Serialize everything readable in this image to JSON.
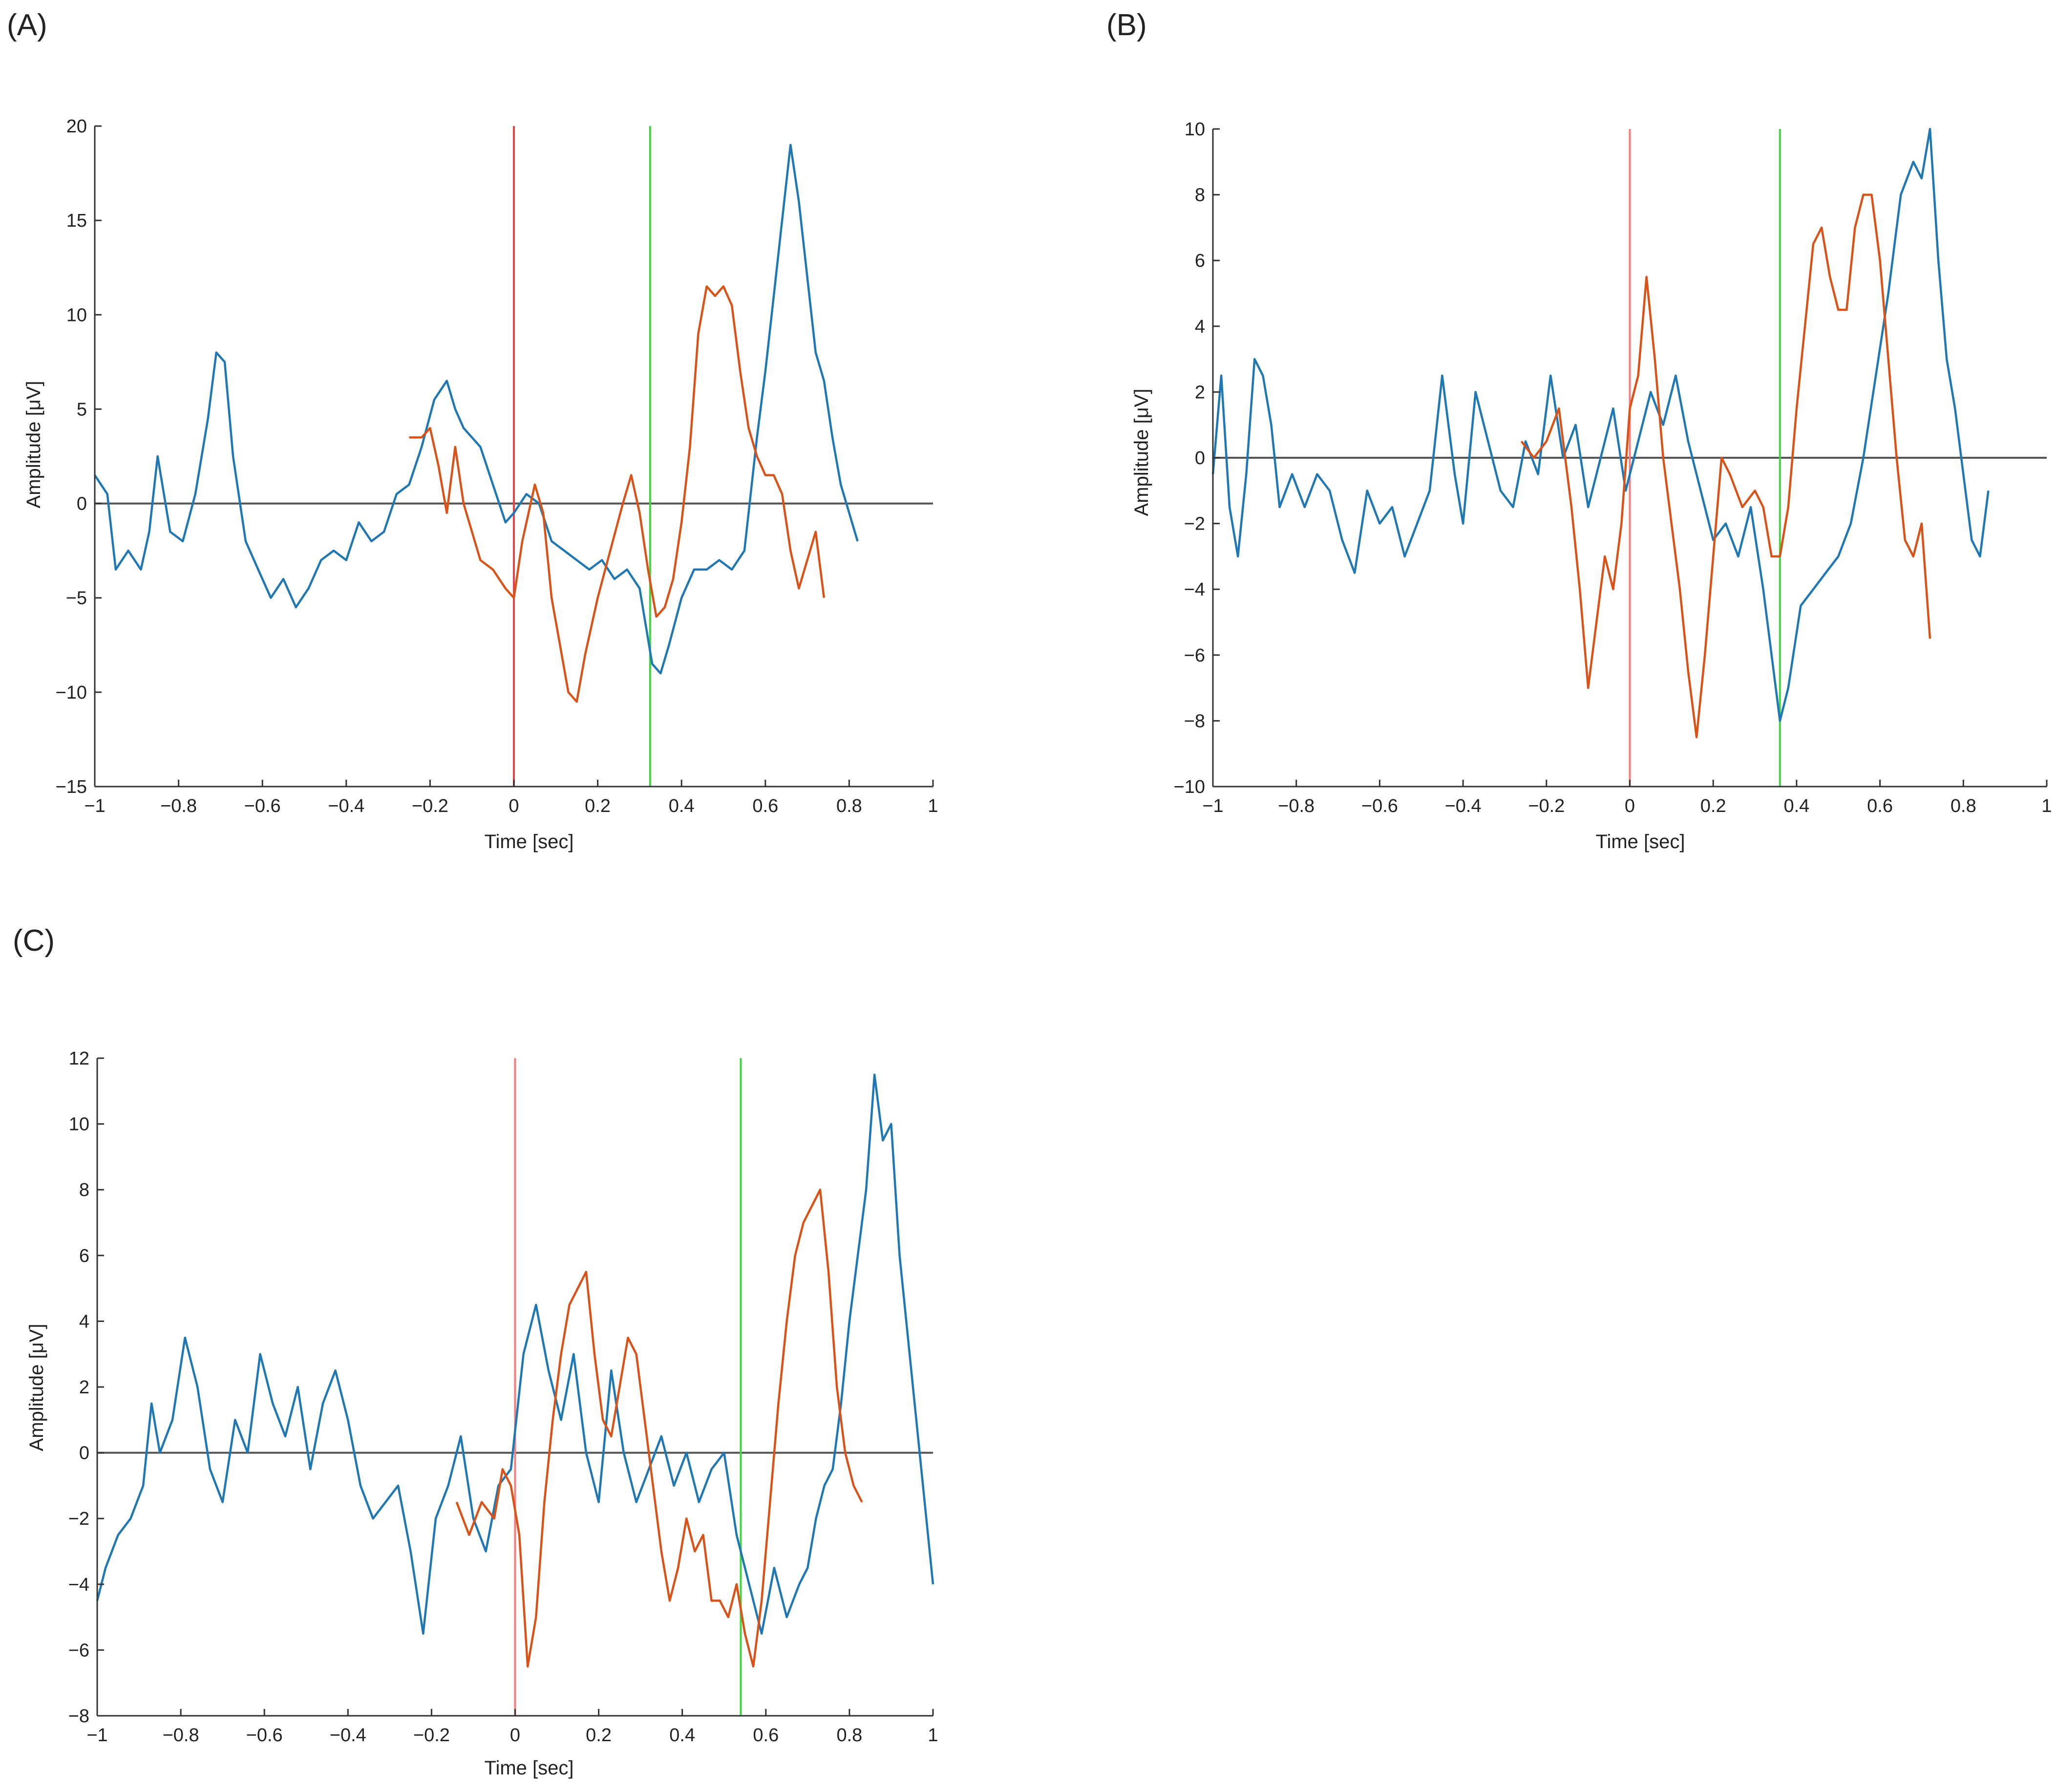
{
  "chart_data": [
    {
      "panel": "(A)",
      "type": "line",
      "xlabel": "Time [sec]",
      "ylabel": "Amplitude [μV]",
      "xlim": [
        -1,
        1
      ],
      "ylim": [
        -15,
        20
      ],
      "xticks": [
        -1,
        -0.8,
        -0.6,
        -0.4,
        -0.2,
        0,
        0.2,
        0.4,
        0.6,
        0.8,
        1
      ],
      "xtick_labels": [
        "−1",
        "−0.8",
        "−0.6",
        "−0.4",
        "−0.2",
        "0",
        "0.2",
        "0.4",
        "0.6",
        "0.8",
        "1"
      ],
      "yticks": [
        -15,
        -10,
        -5,
        0,
        5,
        10,
        15,
        20
      ],
      "ytick_labels": [
        "−15",
        "−10",
        "−5",
        "0",
        "5",
        "10",
        "15",
        "20"
      ],
      "vlines": [
        {
          "x": 0,
          "color": "#e8434b"
        },
        {
          "x": 0.325,
          "color": "#42d442"
        }
      ],
      "zero_line_color": "#555555",
      "series": [
        {
          "name": "blue",
          "color": "#1f77b4",
          "x": [
            -1,
            -0.97,
            -0.95,
            -0.92,
            -0.89,
            -0.87,
            -0.85,
            -0.82,
            -0.79,
            -0.76,
            -0.73,
            -0.71,
            -0.69,
            -0.67,
            -0.64,
            -0.61,
            -0.58,
            -0.55,
            -0.52,
            -0.49,
            -0.46,
            -0.43,
            -0.4,
            -0.37,
            -0.34,
            -0.31,
            -0.28,
            -0.25,
            -0.22,
            -0.19,
            -0.16,
            -0.14,
            -0.12,
            -0.1,
            -0.08,
            -0.05,
            -0.02,
            0,
            0.03,
            0.06,
            0.09,
            0.12,
            0.15,
            0.18,
            0.21,
            0.24,
            0.27,
            0.3,
            0.33,
            0.35,
            0.37,
            0.4,
            0.43,
            0.46,
            0.49,
            0.52,
            0.55,
            0.58,
            0.6,
            0.62,
            0.64,
            0.66,
            0.68,
            0.7,
            0.72,
            0.74,
            0.76,
            0.78,
            0.8,
            0.82
          ],
          "values": [
            1.5,
            0.5,
            -3.5,
            -2.5,
            -3.5,
            -1.5,
            2.5,
            -1.5,
            -2,
            0.5,
            4.5,
            8,
            7.5,
            2.5,
            -2,
            -3.5,
            -5,
            -4,
            -5.5,
            -4.5,
            -3,
            -2.5,
            -3,
            -1,
            -2,
            -1.5,
            0.5,
            1,
            3,
            5.5,
            6.5,
            5,
            4,
            3.5,
            3,
            1,
            -1,
            -0.5,
            0.5,
            0,
            -2,
            -2.5,
            -3,
            -3.5,
            -3,
            -4,
            -3.5,
            -4.5,
            -8.5,
            -9,
            -7.5,
            -5,
            -3.5,
            -3.5,
            -3,
            -3.5,
            -2.5,
            3.5,
            7,
            11,
            15,
            19,
            16,
            12,
            8,
            6.5,
            3.5,
            1,
            -0.5,
            -2
          ]
        },
        {
          "name": "orange",
          "color": "#d95319",
          "x": [
            -0.25,
            -0.22,
            -0.2,
            -0.18,
            -0.16,
            -0.14,
            -0.12,
            -0.1,
            -0.08,
            -0.05,
            -0.02,
            0,
            0.02,
            0.05,
            0.07,
            0.09,
            0.11,
            0.13,
            0.15,
            0.17,
            0.2,
            0.23,
            0.26,
            0.28,
            0.3,
            0.32,
            0.34,
            0.36,
            0.38,
            0.4,
            0.42,
            0.44,
            0.46,
            0.48,
            0.5,
            0.52,
            0.54,
            0.56,
            0.58,
            0.6,
            0.62,
            0.64,
            0.66,
            0.68,
            0.7,
            0.72,
            0.74
          ],
          "values": [
            3.5,
            3.5,
            4,
            2,
            -0.5,
            3,
            0,
            -1.5,
            -3,
            -3.5,
            -4.5,
            -5,
            -2,
            1,
            -0.5,
            -5,
            -7.5,
            -10,
            -10.5,
            -8,
            -5,
            -2.5,
            0,
            1.5,
            -0.5,
            -3.5,
            -6,
            -5.5,
            -4,
            -1,
            3,
            9,
            11.5,
            11,
            11.5,
            10.5,
            7,
            4,
            2.5,
            1.5,
            1.5,
            0.5,
            -2.5,
            -4.5,
            -3,
            -1.5,
            -5
          ]
        }
      ]
    },
    {
      "panel": "(B)",
      "type": "line",
      "xlabel": "Time [sec]",
      "ylabel": "Amplitude [μV]",
      "xlim": [
        -1,
        1
      ],
      "ylim": [
        -10,
        10
      ],
      "xticks": [
        -1,
        -0.8,
        -0.6,
        -0.4,
        -0.2,
        0,
        0.2,
        0.4,
        0.6,
        0.8,
        1
      ],
      "xtick_labels": [
        "−1",
        "−0.8",
        "−0.6",
        "−0.4",
        "−0.2",
        "0",
        "0.2",
        "0.4",
        "0.6",
        "0.8",
        "1"
      ],
      "yticks": [
        -10,
        -8,
        -6,
        -4,
        -2,
        0,
        2,
        4,
        6,
        8,
        10
      ],
      "ytick_labels": [
        "−10",
        "−8",
        "−6",
        "−4",
        "−2",
        "0",
        "2",
        "4",
        "6",
        "8",
        "10"
      ],
      "vlines": [
        {
          "x": 0,
          "color": "#f08080"
        },
        {
          "x": 0.36,
          "color": "#42d442"
        }
      ],
      "zero_line_color": "#555555",
      "series": [
        {
          "name": "blue",
          "color": "#1f77b4",
          "x": [
            -1,
            -0.98,
            -0.96,
            -0.94,
            -0.92,
            -0.9,
            -0.88,
            -0.86,
            -0.84,
            -0.81,
            -0.78,
            -0.75,
            -0.72,
            -0.69,
            -0.66,
            -0.63,
            -0.6,
            -0.57,
            -0.54,
            -0.51,
            -0.48,
            -0.45,
            -0.42,
            -0.4,
            -0.37,
            -0.34,
            -0.31,
            -0.28,
            -0.25,
            -0.22,
            -0.19,
            -0.16,
            -0.13,
            -0.1,
            -0.07,
            -0.04,
            -0.01,
            0.02,
            0.05,
            0.08,
            0.11,
            0.14,
            0.17,
            0.2,
            0.23,
            0.26,
            0.29,
            0.32,
            0.34,
            0.36,
            0.38,
            0.41,
            0.44,
            0.47,
            0.5,
            0.53,
            0.56,
            0.59,
            0.62,
            0.65,
            0.68,
            0.7,
            0.72,
            0.74,
            0.76,
            0.78,
            0.8,
            0.82,
            0.84,
            0.86
          ],
          "values": [
            -0.5,
            2.5,
            -1.5,
            -3,
            -0.5,
            3,
            2.5,
            1,
            -1.5,
            -0.5,
            -1.5,
            -0.5,
            -1,
            -2.5,
            -3.5,
            -1,
            -2,
            -1.5,
            -3,
            -2,
            -1,
            2.5,
            -0.5,
            -2,
            2,
            0.5,
            -1,
            -1.5,
            0.5,
            -0.5,
            2.5,
            0,
            1,
            -1.5,
            0,
            1.5,
            -1,
            0.5,
            2,
            1,
            2.5,
            0.5,
            -1,
            -2.5,
            -2,
            -3,
            -1.5,
            -4,
            -6,
            -8,
            -7,
            -4.5,
            -4,
            -3.5,
            -3,
            -2,
            0,
            2.5,
            5,
            8,
            9,
            8.5,
            10,
            6,
            3,
            1.5,
            -0.5,
            -2.5,
            -3,
            -1
          ]
        },
        {
          "name": "orange",
          "color": "#d95319",
          "x": [
            -0.26,
            -0.23,
            -0.2,
            -0.17,
            -0.14,
            -0.12,
            -0.1,
            -0.08,
            -0.06,
            -0.04,
            -0.02,
            0,
            0.02,
            0.04,
            0.06,
            0.08,
            0.1,
            0.12,
            0.14,
            0.16,
            0.18,
            0.2,
            0.22,
            0.24,
            0.27,
            0.3,
            0.32,
            0.34,
            0.36,
            0.38,
            0.4,
            0.42,
            0.44,
            0.46,
            0.48,
            0.5,
            0.52,
            0.54,
            0.56,
            0.58,
            0.6,
            0.62,
            0.64,
            0.66,
            0.68,
            0.7,
            0.72
          ],
          "values": [
            0.5,
            0,
            0.5,
            1.5,
            -1.5,
            -4,
            -7,
            -5,
            -3,
            -4,
            -2,
            1.5,
            2.5,
            5.5,
            3,
            0,
            -2,
            -4,
            -6.5,
            -8.5,
            -6,
            -3,
            0,
            -0.5,
            -1.5,
            -1,
            -1.5,
            -3,
            -3,
            -1.5,
            1.5,
            4,
            6.5,
            7,
            5.5,
            4.5,
            4.5,
            7,
            8,
            8,
            6,
            3,
            0,
            -2.5,
            -3,
            -2,
            -5.5
          ]
        }
      ]
    },
    {
      "panel": "(C)",
      "type": "line",
      "xlabel": "Time [sec]",
      "ylabel": "Amplitude [μV]",
      "xlim": [
        -1,
        1
      ],
      "ylim": [
        -8,
        12
      ],
      "xticks": [
        -1,
        -0.8,
        -0.6,
        -0.4,
        -0.2,
        0,
        0.2,
        0.4,
        0.6,
        0.8,
        1
      ],
      "xtick_labels": [
        "−1",
        "−0.8",
        "−0.6",
        "−0.4",
        "−0.2",
        "0",
        "0.2",
        "0.4",
        "0.6",
        "0.8",
        "1"
      ],
      "yticks": [
        -8,
        -6,
        -4,
        -2,
        0,
        2,
        4,
        6,
        8,
        10,
        12
      ],
      "ytick_labels": [
        "−8",
        "−6",
        "−4",
        "−2",
        "0",
        "2",
        "4",
        "6",
        "8",
        "10",
        "12"
      ],
      "vlines": [
        {
          "x": 0,
          "color": "#f08080"
        },
        {
          "x": 0.54,
          "color": "#42d442"
        }
      ],
      "zero_line_color": "#555555",
      "series": [
        {
          "name": "blue",
          "color": "#1f77b4",
          "x": [
            -1,
            -0.98,
            -0.95,
            -0.92,
            -0.89,
            -0.87,
            -0.85,
            -0.82,
            -0.79,
            -0.76,
            -0.73,
            -0.7,
            -0.67,
            -0.64,
            -0.61,
            -0.58,
            -0.55,
            -0.52,
            -0.49,
            -0.46,
            -0.43,
            -0.4,
            -0.37,
            -0.34,
            -0.31,
            -0.28,
            -0.25,
            -0.22,
            -0.19,
            -0.16,
            -0.13,
            -0.1,
            -0.07,
            -0.04,
            -0.01,
            0.02,
            0.05,
            0.08,
            0.11,
            0.14,
            0.17,
            0.2,
            0.23,
            0.26,
            0.29,
            0.32,
            0.35,
            0.38,
            0.41,
            0.44,
            0.47,
            0.5,
            0.53,
            0.56,
            0.59,
            0.62,
            0.65,
            0.68,
            0.7,
            0.72,
            0.74,
            0.76,
            0.78,
            0.8,
            0.82,
            0.84,
            0.86,
            0.88,
            0.9,
            0.92,
            0.94,
            0.96,
            0.98,
            1
          ],
          "values": [
            -4.5,
            -3.5,
            -2.5,
            -2,
            -1,
            1.5,
            0,
            1,
            3.5,
            2,
            -0.5,
            -1.5,
            1,
            0,
            3,
            1.5,
            0.5,
            2,
            -0.5,
            1.5,
            2.5,
            1,
            -1,
            -2,
            -1.5,
            -1,
            -3,
            -5.5,
            -2,
            -1,
            0.5,
            -2,
            -3,
            -1,
            -0.5,
            3,
            4.5,
            2.5,
            1,
            3,
            0,
            -1.5,
            2.5,
            0,
            -1.5,
            -0.5,
            0.5,
            -1,
            0,
            -1.5,
            -0.5,
            0,
            -2.5,
            -4,
            -5.5,
            -3.5,
            -5,
            -4,
            -3.5,
            -2,
            -1,
            -0.5,
            1.5,
            4,
            6,
            8,
            11.5,
            9.5,
            10,
            6,
            3.5,
            1,
            -1.5,
            -4
          ]
        },
        {
          "name": "orange",
          "color": "#d95319",
          "x": [
            -0.14,
            -0.11,
            -0.08,
            -0.05,
            -0.03,
            -0.01,
            0.01,
            0.03,
            0.05,
            0.07,
            0.09,
            0.11,
            0.13,
            0.15,
            0.17,
            0.19,
            0.21,
            0.23,
            0.25,
            0.27,
            0.29,
            0.31,
            0.33,
            0.35,
            0.37,
            0.39,
            0.41,
            0.43,
            0.45,
            0.47,
            0.49,
            0.51,
            0.53,
            0.55,
            0.57,
            0.59,
            0.61,
            0.63,
            0.65,
            0.67,
            0.69,
            0.71,
            0.73,
            0.75,
            0.77,
            0.79,
            0.81,
            0.83
          ],
          "values": [
            -1.5,
            -2.5,
            -1.5,
            -2,
            -0.5,
            -1,
            -2.5,
            -6.5,
            -5,
            -1.5,
            1,
            3,
            4.5,
            5,
            5.5,
            3,
            1,
            0.5,
            2,
            3.5,
            3,
            1,
            -1,
            -3,
            -4.5,
            -3.5,
            -2,
            -3,
            -2.5,
            -4.5,
            -4.5,
            -5,
            -4,
            -5.5,
            -6.5,
            -4.5,
            -1.5,
            1.5,
            4,
            6,
            7,
            7.5,
            8,
            5.5,
            2,
            0,
            -1,
            -1.5
          ]
        }
      ]
    }
  ]
}
